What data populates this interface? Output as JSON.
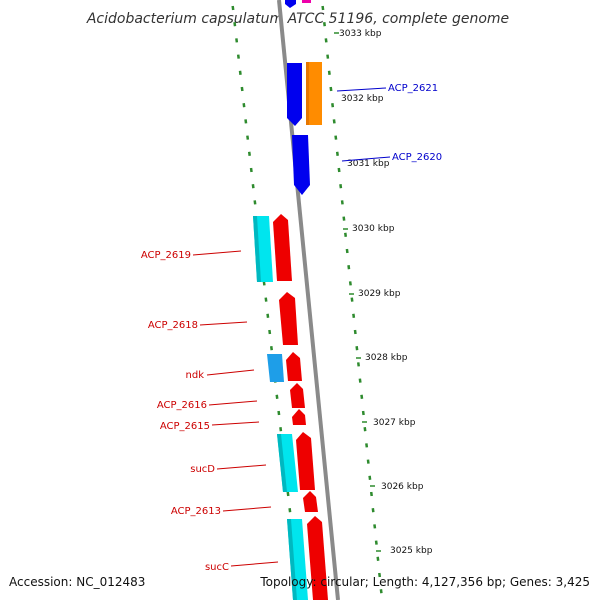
{
  "title": "Acidobacterium capsulatum ATCC 51196, complete genome",
  "footer": {
    "accession": "Accession: NC_012483",
    "topology": "Topology: circular; Length: 4,127,356 bp; Genes: 3,425"
  },
  "colors": {
    "backbone": "#8a8a8a",
    "tick": "#2e8b2e",
    "plus_strand_cds": "#0000ee",
    "minus_strand_cds": "#ee0000",
    "orange_feature": "#ff8c00",
    "cyan_feature": "#00e5ee",
    "light_blue_feature": "#1e9ee8",
    "magenta_feature": "#ee00aa",
    "label_blue": "#0000cc",
    "label_red": "#cc0000"
  },
  "kbp_marks": [
    "3033 kbp",
    "3032 kbp",
    "3031 kbp",
    "3030 kbp",
    "3029 kbp",
    "3028 kbp",
    "3027 kbp",
    "3026 kbp",
    "3025 kbp"
  ],
  "gene_labels": [
    {
      "text": "ACP_2621",
      "strand": "plus"
    },
    {
      "text": "ACP_2620",
      "strand": "plus"
    },
    {
      "text": "ACP_2619",
      "strand": "minus"
    },
    {
      "text": "ACP_2618",
      "strand": "minus"
    },
    {
      "text": "ndk",
      "strand": "minus"
    },
    {
      "text": "ACP_2616",
      "strand": "minus"
    },
    {
      "text": "ACP_2615",
      "strand": "minus"
    },
    {
      "text": "sucD",
      "strand": "minus"
    },
    {
      "text": "ACP_2613",
      "strand": "minus"
    },
    {
      "text": "sucC",
      "strand": "minus"
    }
  ]
}
